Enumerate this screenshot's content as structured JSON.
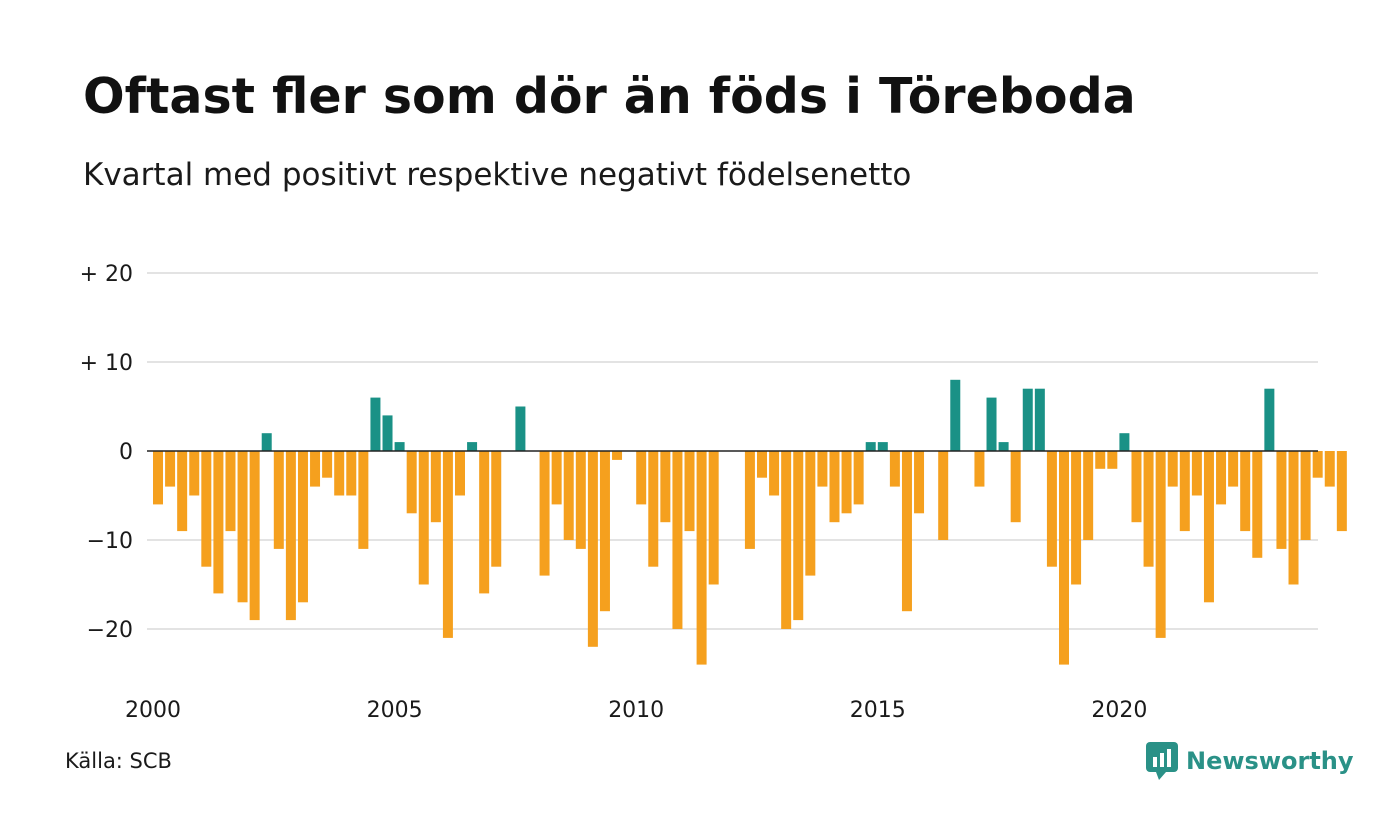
{
  "title": "Oftast fler som dör än föds i Töreboda",
  "subtitle": "Kvartal med positivt respektive negativt födelsenetto",
  "source": "Källa: SCB",
  "brand": {
    "name": "Newsworthy",
    "icon": "newsworthy-logo-icon"
  },
  "colors": {
    "positive": "#1a9186",
    "negative": "#f5a01e",
    "gridline": "#e3e3e3",
    "zeroline": "#222222",
    "brand": "#2a9187"
  },
  "chart_data": {
    "type": "bar",
    "title": "Oftast fler som dör än föds i Töreboda",
    "subtitle": "Kvartal med positivt respektive negativt födelsenetto",
    "xlabel": "",
    "ylabel": "",
    "ylim": [
      -27,
      22
    ],
    "yticks": [
      {
        "value": 20,
        "label": "+ 20"
      },
      {
        "value": 10,
        "label": "+ 10"
      },
      {
        "value": 0,
        "label": "0"
      },
      {
        "value": -10,
        "label": "−10"
      },
      {
        "value": -20,
        "label": "−20"
      }
    ],
    "xticks": [
      "2000",
      "2005",
      "2010",
      "2015",
      "2020"
    ],
    "grid": true,
    "start_year": 2000,
    "periods_per_year": 4,
    "values": [
      -6,
      -4,
      -9,
      -5,
      -13,
      -16,
      -9,
      -17,
      -19,
      2,
      -11,
      -19,
      -17,
      -4,
      -3,
      -5,
      -5,
      -11,
      6,
      4,
      1,
      -7,
      -15,
      -8,
      -21,
      -5,
      1,
      -16,
      -13,
      0,
      5,
      0,
      -14,
      -6,
      -10,
      -11,
      -22,
      -18,
      -1,
      0,
      -6,
      -13,
      -8,
      -20,
      -9,
      -24,
      -15,
      0,
      0,
      -11,
      -3,
      -5,
      -20,
      -19,
      -14,
      -4,
      -8,
      -7,
      -6,
      1,
      1,
      -4,
      -18,
      -7,
      0,
      -10,
      8,
      0,
      -4,
      6,
      1,
      -8,
      7,
      7,
      -13,
      -24,
      -15,
      -10,
      -2,
      -2,
      2,
      -8,
      -13,
      -21,
      -4,
      -9,
      -5,
      -17,
      -6,
      -4,
      -9,
      -12,
      7,
      -11,
      -15,
      -10,
      -3,
      -4,
      -9
    ]
  }
}
